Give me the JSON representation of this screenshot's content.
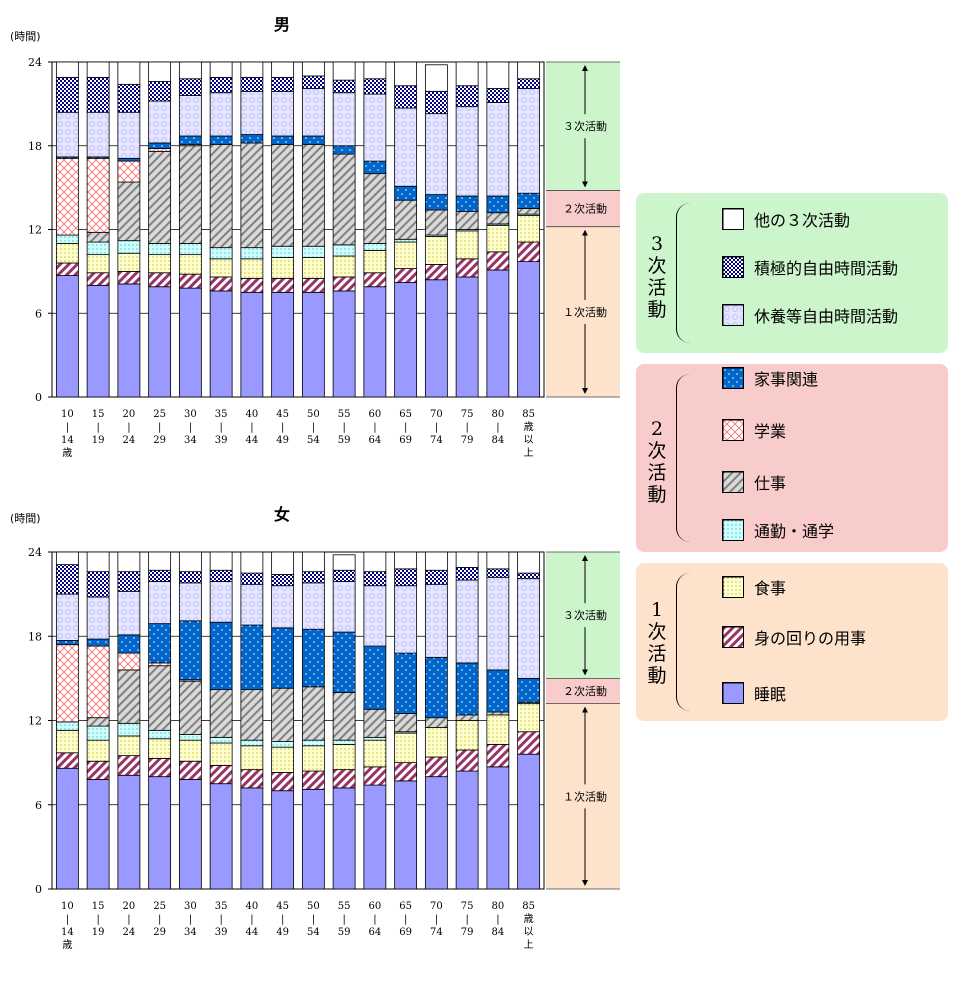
{
  "legend": {
    "groups": [
      {
        "label_chars": [
          "3",
          "次",
          "活",
          "動"
        ],
        "color": "#ccf5cc",
        "items": [
          {
            "key": "other3",
            "label": "他の３次活動"
          },
          {
            "key": "active_leisure",
            "label": "積極的自由時間活動"
          },
          {
            "key": "rest_leisure",
            "label": "休養等自由時間活動"
          }
        ]
      },
      {
        "label_chars": [
          "2",
          "次",
          "活",
          "動"
        ],
        "color": "#f9cccc",
        "items": [
          {
            "key": "housework",
            "label": "家事関連"
          },
          {
            "key": "study",
            "label": "学業"
          },
          {
            "key": "work",
            "label": "仕事"
          },
          {
            "key": "commute",
            "label": "通勤・通学"
          }
        ]
      },
      {
        "label_chars": [
          "1",
          "次",
          "活",
          "動"
        ],
        "color": "#fde2cc",
        "items": [
          {
            "key": "meals",
            "label": "食事"
          },
          {
            "key": "personal_care",
            "label": "身の回りの用事"
          },
          {
            "key": "sleep",
            "label": "睡眠"
          }
        ]
      }
    ]
  },
  "series_styles": {
    "sleep": {
      "color": "#9999ff",
      "pattern": "solid"
    },
    "personal_care": {
      "color": "#993366",
      "pattern": "diag"
    },
    "meals": {
      "color": "#ffffcc",
      "pattern": "dots"
    },
    "commute": {
      "color": "#ccffff",
      "pattern": "dots"
    },
    "work": {
      "color": "#c0c0c0",
      "pattern": "diag"
    },
    "study": {
      "color": "#ff9999",
      "pattern": "cross"
    },
    "housework": {
      "color": "#0066cc",
      "pattern": "bricks"
    },
    "rest_leisure": {
      "color": "#ccccff",
      "pattern": "swirl"
    },
    "active_leisure": {
      "color": "#000080",
      "pattern": "checker"
    },
    "other3": {
      "color": "#ffffff",
      "pattern": "solid"
    }
  },
  "series_order": [
    "sleep",
    "personal_care",
    "meals",
    "commute",
    "work",
    "study",
    "housework",
    "rest_leisure",
    "active_leisure",
    "other3"
  ],
  "chart_data": [
    {
      "type": "bar",
      "title": "男",
      "ylabel": "(時間)",
      "ylim": [
        0,
        24
      ],
      "yticks": [
        0,
        6,
        12,
        18,
        24
      ],
      "categories": [
        [
          "10",
          "|",
          "14",
          "歳"
        ],
        [
          "15",
          "|",
          "19"
        ],
        [
          "20",
          "|",
          "24"
        ],
        [
          "25",
          "|",
          "29"
        ],
        [
          "30",
          "|",
          "34"
        ],
        [
          "35",
          "|",
          "39"
        ],
        [
          "40",
          "|",
          "44"
        ],
        [
          "45",
          "|",
          "49"
        ],
        [
          "50",
          "|",
          "54"
        ],
        [
          "55",
          "|",
          "59"
        ],
        [
          "60",
          "|",
          "64"
        ],
        [
          "65",
          "|",
          "69"
        ],
        [
          "70",
          "|",
          "74"
        ],
        [
          "75",
          "|",
          "79"
        ],
        [
          "80",
          "|",
          "84"
        ],
        [
          "85",
          "歳",
          "以",
          "上"
        ]
      ],
      "bands": [
        {
          "label": "３次活動",
          "from": 14.8,
          "to": 24,
          "color": "#ccf5cc"
        },
        {
          "label": "２次活動",
          "from": 12.2,
          "to": 14.8,
          "color": "#f9cccc"
        },
        {
          "label": "１次活動",
          "from": 0,
          "to": 12.2,
          "color": "#fde2cc"
        }
      ],
      "series": [
        {
          "key": "sleep",
          "values": [
            8.7,
            8.0,
            8.1,
            7.9,
            7.8,
            7.6,
            7.5,
            7.5,
            7.5,
            7.6,
            7.9,
            8.2,
            8.4,
            8.6,
            9.1,
            9.7
          ]
        },
        {
          "key": "personal_care",
          "values": [
            0.9,
            0.9,
            0.9,
            1.0,
            1.0,
            1.0,
            1.0,
            1.0,
            1.0,
            1.0,
            1.0,
            1.0,
            1.1,
            1.3,
            1.3,
            1.4
          ]
        },
        {
          "key": "meals",
          "values": [
            1.4,
            1.3,
            1.3,
            1.3,
            1.4,
            1.3,
            1.4,
            1.5,
            1.5,
            1.5,
            1.6,
            1.9,
            2.0,
            2.0,
            1.9,
            1.9
          ]
        },
        {
          "key": "commute",
          "values": [
            0.6,
            0.9,
            0.9,
            0.8,
            0.8,
            0.8,
            0.8,
            0.8,
            0.8,
            0.8,
            0.5,
            0.2,
            0.1,
            0.1,
            0.1,
            0.1
          ]
        },
        {
          "key": "work",
          "values": [
            0.0,
            0.7,
            4.2,
            6.6,
            7.0,
            7.4,
            7.5,
            7.3,
            7.3,
            6.5,
            5.0,
            2.8,
            1.8,
            1.3,
            0.8,
            0.4
          ]
        },
        {
          "key": "study",
          "values": [
            5.5,
            5.3,
            1.5,
            0.2,
            0.1,
            0.0,
            0.0,
            0.0,
            0.0,
            0.0,
            0.0,
            0.0,
            0.0,
            0.0,
            0.0,
            0.0
          ]
        },
        {
          "key": "housework",
          "values": [
            0.1,
            0.1,
            0.2,
            0.4,
            0.6,
            0.6,
            0.6,
            0.6,
            0.6,
            0.6,
            0.9,
            1.0,
            1.1,
            1.1,
            1.2,
            1.1
          ]
        },
        {
          "key": "rest_leisure",
          "values": [
            3.2,
            3.2,
            3.3,
            3.0,
            2.9,
            3.1,
            3.1,
            3.2,
            3.4,
            3.8,
            4.8,
            5.6,
            5.8,
            6.4,
            6.7,
            7.5
          ]
        },
        {
          "key": "active_leisure",
          "values": [
            2.5,
            2.5,
            2.0,
            1.4,
            1.2,
            1.1,
            1.0,
            1.0,
            0.9,
            0.9,
            1.1,
            1.6,
            1.6,
            1.5,
            1.0,
            0.7
          ]
        },
        {
          "key": "other3",
          "values": [
            1.1,
            1.1,
            1.6,
            1.4,
            1.2,
            1.1,
            1.1,
            1.1,
            1.0,
            1.3,
            1.2,
            1.7,
            1.9,
            1.7,
            1.9,
            1.2
          ]
        }
      ]
    },
    {
      "type": "bar",
      "title": "女",
      "ylabel": "(時間)",
      "ylim": [
        0,
        24
      ],
      "yticks": [
        0,
        6,
        12,
        18,
        24
      ],
      "categories": [
        [
          "10",
          "|",
          "14",
          "歳"
        ],
        [
          "15",
          "|",
          "19"
        ],
        [
          "20",
          "|",
          "24"
        ],
        [
          "25",
          "|",
          "29"
        ],
        [
          "30",
          "|",
          "34"
        ],
        [
          "35",
          "|",
          "39"
        ],
        [
          "40",
          "|",
          "44"
        ],
        [
          "45",
          "|",
          "49"
        ],
        [
          "50",
          "|",
          "54"
        ],
        [
          "55",
          "|",
          "59"
        ],
        [
          "60",
          "|",
          "64"
        ],
        [
          "65",
          "|",
          "69"
        ],
        [
          "70",
          "|",
          "74"
        ],
        [
          "75",
          "|",
          "79"
        ],
        [
          "80",
          "|",
          "84"
        ],
        [
          "85",
          "歳",
          "以",
          "上"
        ]
      ],
      "bands": [
        {
          "label": "３次活動",
          "from": 15.0,
          "to": 24,
          "color": "#ccf5cc"
        },
        {
          "label": "２次活動",
          "from": 13.2,
          "to": 15.0,
          "color": "#f9cccc"
        },
        {
          "label": "１次活動",
          "from": 0,
          "to": 13.2,
          "color": "#fde2cc"
        }
      ],
      "series": [
        {
          "key": "sleep",
          "values": [
            8.6,
            7.8,
            8.1,
            8.0,
            7.8,
            7.5,
            7.2,
            7.0,
            7.1,
            7.2,
            7.4,
            7.7,
            8.0,
            8.4,
            8.7,
            9.6
          ]
        },
        {
          "key": "personal_care",
          "values": [
            1.1,
            1.3,
            1.4,
            1.3,
            1.3,
            1.3,
            1.3,
            1.3,
            1.3,
            1.3,
            1.3,
            1.3,
            1.4,
            1.5,
            1.6,
            1.6
          ]
        },
        {
          "key": "meals",
          "values": [
            1.6,
            1.5,
            1.4,
            1.4,
            1.5,
            1.6,
            1.7,
            1.8,
            1.8,
            1.8,
            1.9,
            2.1,
            2.1,
            2.1,
            2.1,
            2.0
          ]
        },
        {
          "key": "commute",
          "values": [
            0.6,
            1.0,
            0.9,
            0.6,
            0.4,
            0.4,
            0.4,
            0.4,
            0.4,
            0.3,
            0.2,
            0.1,
            0.0,
            0.0,
            0.0,
            0.0
          ]
        },
        {
          "key": "work",
          "values": [
            0.0,
            0.6,
            3.8,
            4.6,
            3.8,
            3.4,
            3.6,
            3.8,
            3.8,
            3.4,
            2.0,
            1.3,
            0.7,
            0.4,
            0.2,
            0.1
          ]
        },
        {
          "key": "study",
          "values": [
            5.5,
            5.1,
            1.2,
            0.2,
            0.1,
            0.0,
            0.0,
            0.0,
            0.0,
            0.0,
            0.0,
            0.0,
            0.0,
            0.0,
            0.0,
            0.0
          ]
        },
        {
          "key": "housework",
          "values": [
            0.3,
            0.5,
            1.3,
            2.8,
            4.2,
            4.8,
            4.6,
            4.3,
            4.1,
            4.3,
            4.5,
            4.3,
            4.3,
            3.7,
            3.0,
            1.7
          ]
        },
        {
          "key": "rest_leisure",
          "values": [
            3.3,
            3.0,
            3.1,
            3.0,
            2.7,
            2.9,
            2.9,
            3.0,
            3.3,
            3.6,
            4.3,
            4.8,
            5.2,
            5.9,
            6.6,
            7.1
          ]
        },
        {
          "key": "active_leisure",
          "values": [
            2.1,
            1.8,
            1.4,
            0.8,
            0.8,
            0.8,
            0.8,
            0.8,
            0.8,
            0.8,
            1.0,
            1.2,
            1.0,
            0.9,
            0.6,
            0.4
          ]
        },
        {
          "key": "other3",
          "values": [
            0.9,
            1.4,
            1.4,
            1.3,
            1.4,
            1.3,
            1.5,
            1.6,
            1.4,
            1.1,
            1.4,
            1.2,
            1.3,
            1.1,
            1.2,
            1.5
          ]
        }
      ]
    }
  ]
}
